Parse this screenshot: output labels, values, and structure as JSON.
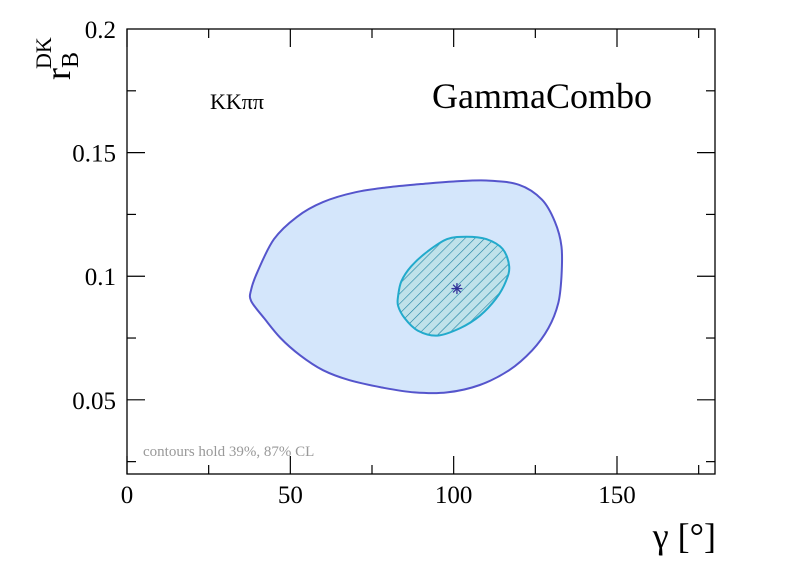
{
  "chart_data": {
    "type": "contour",
    "xlabel": "γ [°]",
    "ylabel_main": "r",
    "ylabel_sup": "DK",
    "ylabel_sub": "B",
    "xlim": [
      0,
      180
    ],
    "ylim": [
      0.02,
      0.2
    ],
    "x_major_ticks": [
      0,
      50,
      100,
      150
    ],
    "x_tick_labels": [
      "0",
      "50",
      "100",
      "150"
    ],
    "y_major_ticks": [
      0.05,
      0.1,
      0.15,
      0.2
    ],
    "y_tick_labels": [
      "0.05",
      "0.1",
      "0.15",
      "0.2"
    ],
    "channel_label": "KKππ",
    "brand": "GammaCombo",
    "note": "contours hold 39%, 87% CL",
    "best_fit": {
      "x": 101,
      "y": 0.095
    },
    "contours": [
      {
        "cl": "87%",
        "fill": "#d4e6fb",
        "stroke": "#5555cc",
        "points": [
          [
            38,
            0.0945
          ],
          [
            40,
            0.102
          ],
          [
            45,
            0.115
          ],
          [
            52,
            0.124
          ],
          [
            60,
            0.13
          ],
          [
            70,
            0.134
          ],
          [
            80,
            0.136
          ],
          [
            90,
            0.1373
          ],
          [
            100,
            0.1383
          ],
          [
            110,
            0.1387
          ],
          [
            120,
            0.137
          ],
          [
            127,
            0.131
          ],
          [
            131,
            0.122
          ],
          [
            133,
            0.112
          ],
          [
            133,
            0.1
          ],
          [
            132,
            0.089
          ],
          [
            129,
            0.079
          ],
          [
            124,
            0.07
          ],
          [
            117,
            0.062
          ],
          [
            108,
            0.056
          ],
          [
            98,
            0.053
          ],
          [
            88,
            0.053
          ],
          [
            78,
            0.055
          ],
          [
            68,
            0.058
          ],
          [
            60,
            0.062
          ],
          [
            53,
            0.068
          ],
          [
            47,
            0.075
          ],
          [
            42,
            0.083
          ],
          [
            38,
            0.09
          ]
        ]
      },
      {
        "cl": "39%",
        "fill": "#bfe2ea",
        "stroke": "#22aacc",
        "hatch": true,
        "points": [
          [
            83,
            0.092
          ],
          [
            84,
            0.098
          ],
          [
            87,
            0.104
          ],
          [
            92,
            0.11
          ],
          [
            98,
            0.115
          ],
          [
            104,
            0.116
          ],
          [
            110,
            0.115
          ],
          [
            115,
            0.111
          ],
          [
            117,
            0.104
          ],
          [
            116,
            0.098
          ],
          [
            113,
            0.091
          ],
          [
            108,
            0.084
          ],
          [
            102,
            0.079
          ],
          [
            95,
            0.076
          ],
          [
            89,
            0.078
          ],
          [
            85,
            0.083
          ],
          [
            83,
            0.088
          ]
        ]
      }
    ]
  }
}
